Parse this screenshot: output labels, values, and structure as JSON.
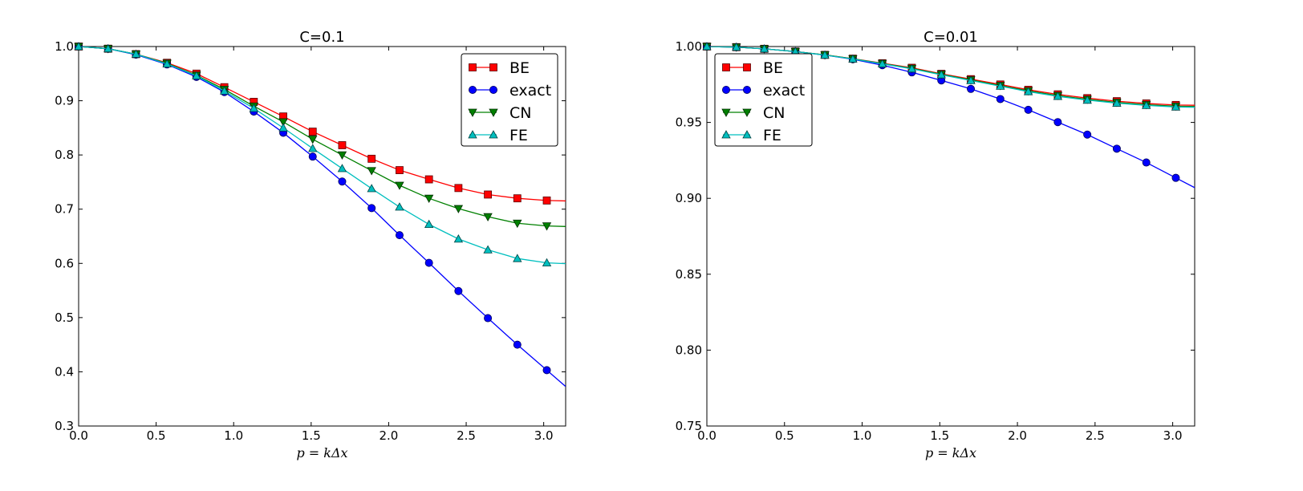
{
  "chart_data": [
    {
      "type": "line",
      "title": "C=0.1",
      "xlabel": "p = kΔx",
      "ylabel": "",
      "xlim": [
        0,
        3.14159
      ],
      "ylim": [
        0.3,
        1.0
      ],
      "xticks": [
        "0.0",
        "0.5",
        "1.0",
        "1.5",
        "2.0",
        "2.5",
        "3.0"
      ],
      "yticks": [
        "0.3",
        "0.4",
        "0.5",
        "0.6",
        "0.7",
        "0.8",
        "0.9",
        "1.0"
      ],
      "grid": false,
      "legend_position": "top-right",
      "x": [
        0.0,
        0.19,
        0.37,
        0.57,
        0.76,
        0.94,
        1.13,
        1.32,
        1.51,
        1.7,
        1.89,
        2.07,
        2.26,
        2.45,
        2.64,
        2.83,
        3.02
      ],
      "series": [
        {
          "name": "BE",
          "color": "#ff0000",
          "marker": "square",
          "values": [
            1.0,
            0.996,
            0.986,
            0.97,
            0.95,
            0.925,
            0.898,
            0.871,
            0.843,
            0.818,
            0.793,
            0.772,
            0.755,
            0.739,
            0.727,
            0.72,
            0.716
          ]
        },
        {
          "name": "exact",
          "color": "#0000ff",
          "marker": "circle",
          "values": [
            1.0,
            0.996,
            0.985,
            0.967,
            0.944,
            0.916,
            0.88,
            0.841,
            0.797,
            0.751,
            0.702,
            0.652,
            0.601,
            0.549,
            0.499,
            0.45,
            0.403
          ]
        },
        {
          "name": "CN",
          "color": "#008000",
          "marker": "triangle-down",
          "values": [
            1.0,
            0.996,
            0.986,
            0.969,
            0.947,
            0.921,
            0.89,
            0.861,
            0.829,
            0.8,
            0.771,
            0.744,
            0.72,
            0.701,
            0.686,
            0.674,
            0.669
          ]
        },
        {
          "name": "FE",
          "color": "#00bfbf",
          "marker": "triangle-up",
          "values": [
            1.0,
            0.996,
            0.986,
            0.968,
            0.946,
            0.918,
            0.886,
            0.85,
            0.812,
            0.775,
            0.738,
            0.704,
            0.672,
            0.645,
            0.625,
            0.609,
            0.601
          ]
        }
      ]
    },
    {
      "type": "line",
      "title": "C=0.01",
      "xlabel": "p = kΔx",
      "ylabel": "",
      "xlim": [
        0,
        3.14159
      ],
      "ylim": [
        0.75,
        1.0
      ],
      "xticks": [
        "0.0",
        "0.5",
        "1.0",
        "1.5",
        "2.0",
        "2.5",
        "3.0"
      ],
      "yticks": [
        "0.75",
        "0.80",
        "0.85",
        "0.90",
        "0.95",
        "1.00"
      ],
      "grid": false,
      "legend_position": "top-left",
      "x": [
        0.0,
        0.19,
        0.37,
        0.57,
        0.76,
        0.94,
        1.13,
        1.32,
        1.51,
        1.7,
        1.89,
        2.07,
        2.26,
        2.45,
        2.64,
        2.83,
        3.02
      ],
      "series": [
        {
          "name": "BE",
          "color": "#ff0000",
          "marker": "square",
          "values": [
            1.0,
            0.9996,
            0.9985,
            0.9967,
            0.9945,
            0.992,
            0.989,
            0.986,
            0.982,
            0.9785,
            0.975,
            0.9715,
            0.9685,
            0.966,
            0.964,
            0.9625,
            0.9615
          ]
        },
        {
          "name": "exact",
          "color": "#0000ff",
          "marker": "circle",
          "values": [
            1.0,
            0.9996,
            0.9985,
            0.9967,
            0.9944,
            0.9916,
            0.9877,
            0.983,
            0.9777,
            0.9721,
            0.9654,
            0.9583,
            0.9502,
            0.942,
            0.9327,
            0.9236,
            0.9135
          ]
        },
        {
          "name": "CN",
          "color": "#008000",
          "marker": "triangle-down",
          "values": [
            1.0,
            0.9996,
            0.9985,
            0.9967,
            0.9945,
            0.9919,
            0.9888,
            0.9856,
            0.9817,
            0.978,
            0.9743,
            0.9708,
            0.9677,
            0.9652,
            0.9632,
            0.9617,
            0.9607
          ]
        },
        {
          "name": "FE",
          "color": "#00bfbf",
          "marker": "triangle-up",
          "values": [
            1.0,
            0.9996,
            0.9985,
            0.9967,
            0.9944,
            0.9918,
            0.9886,
            0.9853,
            0.9814,
            0.9776,
            0.9739,
            0.9703,
            0.9672,
            0.9647,
            0.9627,
            0.9612,
            0.9602
          ]
        }
      ]
    }
  ]
}
